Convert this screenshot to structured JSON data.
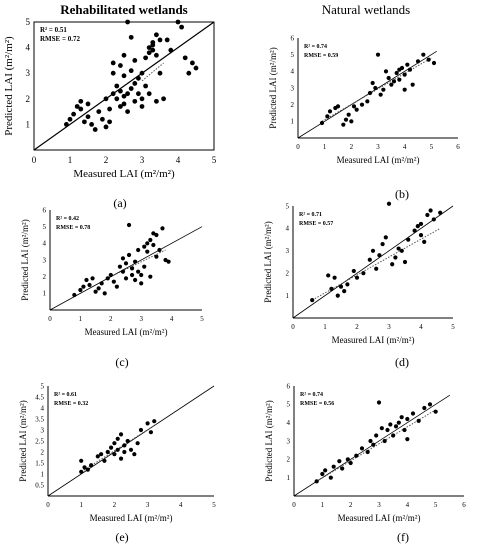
{
  "headers": {
    "left": "Rehabilitated wetlands",
    "right": "Natural wetlands"
  },
  "colors": {
    "marker": "#000000",
    "frame": "#000000",
    "regression": "#555555",
    "one_to_one": "#000000"
  },
  "chart_data": [
    {
      "id": "a",
      "type": "scatter",
      "panel_label": "(a)",
      "xlabel": "Measured LAI (m²/m²)",
      "ylabel": "Predicted LAI (m²/m²)",
      "xlim": [
        0,
        5
      ],
      "ylim": [
        0,
        5
      ],
      "xticks": [
        0,
        1,
        2,
        3,
        4,
        5
      ],
      "yticks": [
        1,
        2,
        3,
        4,
        5
      ],
      "ytick_suffix": "",
      "stats": [
        "R² = 0.51",
        "RMSE = 0.72"
      ],
      "framed": true,
      "one_to_one": [
        [
          0,
          0
        ],
        [
          5,
          5
        ]
      ],
      "fit_line": [
        [
          3.0,
          2.7
        ],
        [
          3.6,
          3.4
        ]
      ],
      "points": [
        [
          0.9,
          1.0
        ],
        [
          1.0,
          1.2
        ],
        [
          1.1,
          1.4
        ],
        [
          1.2,
          1.7
        ],
        [
          1.3,
          1.6
        ],
        [
          1.3,
          1.9
        ],
        [
          1.4,
          1.1
        ],
        [
          1.5,
          1.3
        ],
        [
          1.5,
          1.8
        ],
        [
          1.6,
          1.0
        ],
        [
          1.7,
          0.8
        ],
        [
          1.8,
          1.5
        ],
        [
          1.9,
          1.2
        ],
        [
          2.0,
          0.9
        ],
        [
          2.0,
          2.0
        ],
        [
          2.1,
          1.1
        ],
        [
          2.1,
          1.6
        ],
        [
          2.2,
          2.2
        ],
        [
          2.2,
          3.0
        ],
        [
          2.2,
          3.4
        ],
        [
          2.3,
          2.0
        ],
        [
          2.3,
          2.5
        ],
        [
          2.4,
          1.7
        ],
        [
          2.4,
          2.3
        ],
        [
          2.4,
          3.3
        ],
        [
          2.5,
          1.8
        ],
        [
          2.5,
          2.1
        ],
        [
          2.5,
          2.9
        ],
        [
          2.5,
          3.7
        ],
        [
          2.6,
          5.0
        ],
        [
          2.6,
          2.2
        ],
        [
          2.6,
          1.5
        ],
        [
          2.7,
          2.4
        ],
        [
          2.7,
          3.1
        ],
        [
          2.7,
          4.4
        ],
        [
          2.8,
          1.9
        ],
        [
          2.8,
          2.6
        ],
        [
          2.8,
          3.5
        ],
        [
          2.9,
          2.2
        ],
        [
          2.9,
          2.8
        ],
        [
          3.0,
          2.0
        ],
        [
          3.0,
          1.7
        ],
        [
          3.0,
          3.0
        ],
        [
          3.1,
          3.6
        ],
        [
          3.1,
          2.5
        ],
        [
          3.2,
          3.8
        ],
        [
          3.2,
          4.0
        ],
        [
          3.2,
          2.2
        ],
        [
          3.3,
          4.2
        ],
        [
          3.3,
          3.9
        ],
        [
          3.3,
          4.1
        ],
        [
          3.4,
          4.5
        ],
        [
          3.4,
          3.7
        ],
        [
          3.4,
          1.9
        ],
        [
          3.5,
          3.0
        ],
        [
          3.5,
          4.3
        ],
        [
          3.6,
          2.0
        ],
        [
          3.7,
          4.3
        ],
        [
          3.8,
          3.9
        ],
        [
          4.0,
          5.0
        ],
        [
          4.1,
          4.8
        ],
        [
          4.2,
          3.6
        ],
        [
          4.3,
          3.0
        ],
        [
          4.4,
          3.4
        ],
        [
          4.5,
          3.2
        ]
      ]
    },
    {
      "id": "b",
      "type": "scatter",
      "panel_label": "(b)",
      "xlabel": "Measured LAI (m²/m²)",
      "ylabel": "Predicted LAI (m²/m²)",
      "xlim": [
        0,
        6
      ],
      "ylim": [
        0,
        6
      ],
      "xticks": [
        0,
        1,
        2,
        3,
        4,
        5,
        6
      ],
      "yticks": [
        1,
        2,
        3,
        4,
        5,
        6
      ],
      "ytick_suffix": "",
      "stats": [
        "R² = 0.74",
        "RMSE = 0.59"
      ],
      "framed": false,
      "one_to_one": [
        [
          0,
          0
        ],
        [
          5.2,
          5.2
        ]
      ],
      "fit_line": [
        [
          0.9,
          1.0
        ],
        [
          5.0,
          4.8
        ]
      ],
      "points": [
        [
          0.9,
          0.9
        ],
        [
          1.1,
          1.3
        ],
        [
          1.2,
          1.6
        ],
        [
          1.4,
          1.8
        ],
        [
          1.5,
          1.9
        ],
        [
          1.7,
          0.8
        ],
        [
          1.8,
          1.1
        ],
        [
          1.9,
          1.4
        ],
        [
          2.0,
          1.0
        ],
        [
          2.1,
          1.9
        ],
        [
          2.2,
          1.7
        ],
        [
          2.4,
          2.0
        ],
        [
          2.6,
          2.2
        ],
        [
          2.7,
          2.7
        ],
        [
          2.8,
          3.3
        ],
        [
          2.9,
          3.0
        ],
        [
          3.0,
          5.0
        ],
        [
          3.1,
          2.6
        ],
        [
          3.2,
          2.9
        ],
        [
          3.3,
          4.0
        ],
        [
          3.4,
          3.6
        ],
        [
          3.5,
          3.2
        ],
        [
          3.6,
          3.4
        ],
        [
          3.7,
          3.9
        ],
        [
          3.8,
          4.1
        ],
        [
          3.8,
          3.5
        ],
        [
          3.9,
          4.2
        ],
        [
          4.0,
          3.8
        ],
        [
          4.0,
          2.9
        ],
        [
          4.1,
          4.4
        ],
        [
          4.2,
          4.1
        ],
        [
          4.3,
          3.2
        ],
        [
          4.5,
          4.6
        ],
        [
          4.7,
          5.0
        ],
        [
          4.9,
          4.7
        ],
        [
          5.1,
          4.5
        ]
      ]
    },
    {
      "id": "c",
      "type": "scatter",
      "panel_label": "(c)",
      "xlabel": "Measured LAI (m²/m²)",
      "ylabel": "Predicted LAI (m²/m²)",
      "xlim": [
        0,
        5
      ],
      "ylim": [
        0,
        6
      ],
      "xticks": [
        0,
        1,
        2,
        3,
        4,
        5
      ],
      "yticks": [
        1,
        2,
        3,
        4,
        5,
        6
      ],
      "ytick_suffix": "",
      "stats": [
        "R² = 0.42",
        "RMSE = 0.78"
      ],
      "framed": false,
      "one_to_one": [
        [
          0,
          0
        ],
        [
          5,
          5
        ]
      ],
      "fit_line": [
        [
          2.0,
          2.0
        ],
        [
          3.8,
          3.6
        ]
      ],
      "points": [
        [
          0.8,
          0.9
        ],
        [
          1.0,
          1.2
        ],
        [
          1.1,
          1.4
        ],
        [
          1.2,
          1.8
        ],
        [
          1.3,
          1.5
        ],
        [
          1.4,
          1.9
        ],
        [
          1.5,
          1.1
        ],
        [
          1.6,
          1.3
        ],
        [
          1.7,
          1.6
        ],
        [
          1.8,
          1.0
        ],
        [
          1.9,
          1.9
        ],
        [
          2.0,
          2.1
        ],
        [
          2.1,
          1.7
        ],
        [
          2.2,
          1.4
        ],
        [
          2.3,
          2.6
        ],
        [
          2.4,
          2.3
        ],
        [
          2.4,
          3.1
        ],
        [
          2.5,
          1.9
        ],
        [
          2.5,
          2.8
        ],
        [
          2.6,
          3.3
        ],
        [
          2.6,
          5.1
        ],
        [
          2.7,
          2.5
        ],
        [
          2.7,
          2.1
        ],
        [
          2.8,
          1.8
        ],
        [
          2.8,
          2.9
        ],
        [
          2.9,
          2.3
        ],
        [
          2.9,
          3.6
        ],
        [
          3.0,
          2.1
        ],
        [
          3.0,
          1.6
        ],
        [
          3.1,
          3.8
        ],
        [
          3.1,
          2.6
        ],
        [
          3.2,
          4.0
        ],
        [
          3.2,
          3.5
        ],
        [
          3.3,
          4.2
        ],
        [
          3.3,
          2.0
        ],
        [
          3.4,
          4.6
        ],
        [
          3.4,
          3.9
        ],
        [
          3.5,
          4.5
        ],
        [
          3.5,
          3.2
        ],
        [
          3.6,
          3.6
        ],
        [
          3.7,
          4.9
        ],
        [
          3.8,
          3.0
        ],
        [
          3.9,
          2.9
        ]
      ]
    },
    {
      "id": "d",
      "type": "scatter",
      "panel_label": "(d)",
      "xlabel": "Measured LAI (m²/m²)",
      "ylabel": "Predicted LAI (m²/m²)",
      "xlim": [
        0,
        5
      ],
      "ylim": [
        0,
        5
      ],
      "xticks": [
        0,
        1,
        2,
        3,
        4,
        5
      ],
      "yticks": [
        1,
        2,
        3,
        4,
        5
      ],
      "ytick_suffix": "",
      "stats": [
        "R² = 0.71",
        "RMSE = 0.57"
      ],
      "framed": false,
      "one_to_one": [
        [
          0,
          0
        ],
        [
          5,
          5
        ]
      ],
      "fit_line": [
        [
          0.6,
          0.8
        ],
        [
          4.6,
          4.0
        ]
      ],
      "points": [
        [
          0.6,
          0.8
        ],
        [
          1.1,
          1.9
        ],
        [
          1.2,
          1.3
        ],
        [
          1.3,
          1.8
        ],
        [
          1.4,
          1.0
        ],
        [
          1.5,
          1.4
        ],
        [
          1.6,
          1.2
        ],
        [
          1.7,
          1.5
        ],
        [
          1.9,
          2.1
        ],
        [
          2.0,
          1.8
        ],
        [
          2.2,
          2.0
        ],
        [
          2.4,
          2.6
        ],
        [
          2.5,
          3.0
        ],
        [
          2.6,
          2.2
        ],
        [
          2.7,
          2.8
        ],
        [
          2.8,
          3.3
        ],
        [
          2.9,
          3.6
        ],
        [
          3.0,
          5.1
        ],
        [
          3.1,
          2.4
        ],
        [
          3.2,
          2.7
        ],
        [
          3.3,
          3.1
        ],
        [
          3.4,
          3.0
        ],
        [
          3.5,
          2.5
        ],
        [
          3.6,
          3.5
        ],
        [
          3.8,
          3.9
        ],
        [
          3.9,
          4.1
        ],
        [
          4.0,
          4.2
        ],
        [
          4.0,
          3.7
        ],
        [
          4.1,
          3.4
        ],
        [
          4.2,
          4.6
        ],
        [
          4.3,
          4.8
        ],
        [
          4.4,
          4.4
        ],
        [
          4.6,
          4.7
        ]
      ]
    },
    {
      "id": "e",
      "type": "scatter",
      "panel_label": "(e)",
      "xlabel": "Measured LAI (m²/m²)",
      "ylabel": "Predicted LAI (m²/m²)",
      "xlim": [
        0,
        5
      ],
      "ylim": [
        0,
        5
      ],
      "xticks": [
        0,
        1,
        2,
        3,
        4,
        5
      ],
      "yticks": [
        0.5,
        1,
        1.5,
        2,
        2.5,
        3,
        3.5,
        4,
        4.5,
        5
      ],
      "ytick_suffix": "",
      "stats": [
        "R² = 0.61",
        "RMSE = 0.32"
      ],
      "framed": false,
      "one_to_one": [
        [
          0,
          0
        ],
        [
          5,
          5
        ]
      ],
      "fit_line": [
        [
          1.0,
          1.1
        ],
        [
          3.3,
          3.3
        ]
      ],
      "points": [
        [
          1.0,
          1.1
        ],
        [
          1.0,
          1.6
        ],
        [
          1.1,
          1.3
        ],
        [
          1.2,
          1.2
        ],
        [
          1.3,
          1.4
        ],
        [
          1.5,
          1.8
        ],
        [
          1.6,
          1.9
        ],
        [
          1.7,
          1.6
        ],
        [
          1.8,
          2.0
        ],
        [
          1.9,
          2.2
        ],
        [
          2.0,
          2.4
        ],
        [
          2.0,
          1.9
        ],
        [
          2.1,
          2.1
        ],
        [
          2.1,
          2.6
        ],
        [
          2.2,
          2.8
        ],
        [
          2.2,
          1.7
        ],
        [
          2.3,
          2.3
        ],
        [
          2.3,
          2.0
        ],
        [
          2.4,
          2.5
        ],
        [
          2.5,
          2.1
        ],
        [
          2.6,
          1.9
        ],
        [
          2.7,
          2.4
        ],
        [
          2.8,
          3.0
        ],
        [
          3.0,
          3.3
        ],
        [
          3.1,
          2.9
        ],
        [
          3.2,
          3.4
        ]
      ]
    },
    {
      "id": "f",
      "type": "scatter",
      "panel_label": "(f)",
      "xlabel": "Measured LAI (m²/m²)",
      "ylabel": "Predicted LAI (m²/m²)",
      "xlim": [
        0,
        6
      ],
      "ylim": [
        0,
        6
      ],
      "xticks": [
        0,
        1,
        2,
        3,
        4,
        5,
        6
      ],
      "yticks": [
        1,
        2,
        3,
        4,
        5,
        6
      ],
      "ytick_suffix": "",
      "stats": [
        "R² = 0.74",
        "RMSE = 0.56"
      ],
      "framed": false,
      "one_to_one": [
        [
          0,
          0
        ],
        [
          5.5,
          5.5
        ]
      ],
      "fit_line": [
        [
          0.8,
          0.8
        ],
        [
          5.0,
          4.7
        ]
      ],
      "points": [
        [
          0.8,
          0.8
        ],
        [
          1.0,
          1.2
        ],
        [
          1.1,
          1.4
        ],
        [
          1.3,
          1.0
        ],
        [
          1.4,
          1.6
        ],
        [
          1.6,
          1.9
        ],
        [
          1.7,
          1.5
        ],
        [
          1.9,
          2.0
        ],
        [
          2.0,
          1.8
        ],
        [
          2.2,
          2.2
        ],
        [
          2.4,
          2.6
        ],
        [
          2.6,
          2.4
        ],
        [
          2.7,
          3.0
        ],
        [
          2.8,
          2.8
        ],
        [
          2.9,
          3.3
        ],
        [
          3.0,
          5.1
        ],
        [
          3.1,
          3.7
        ],
        [
          3.2,
          3.0
        ],
        [
          3.3,
          3.6
        ],
        [
          3.4,
          3.9
        ],
        [
          3.5,
          3.3
        ],
        [
          3.6,
          3.8
        ],
        [
          3.7,
          4.0
        ],
        [
          3.8,
          4.3
        ],
        [
          3.9,
          3.6
        ],
        [
          4.0,
          4.2
        ],
        [
          4.0,
          3.1
        ],
        [
          4.2,
          4.5
        ],
        [
          4.4,
          4.1
        ],
        [
          4.6,
          4.8
        ],
        [
          4.8,
          5.0
        ],
        [
          5.0,
          4.6
        ]
      ]
    }
  ]
}
